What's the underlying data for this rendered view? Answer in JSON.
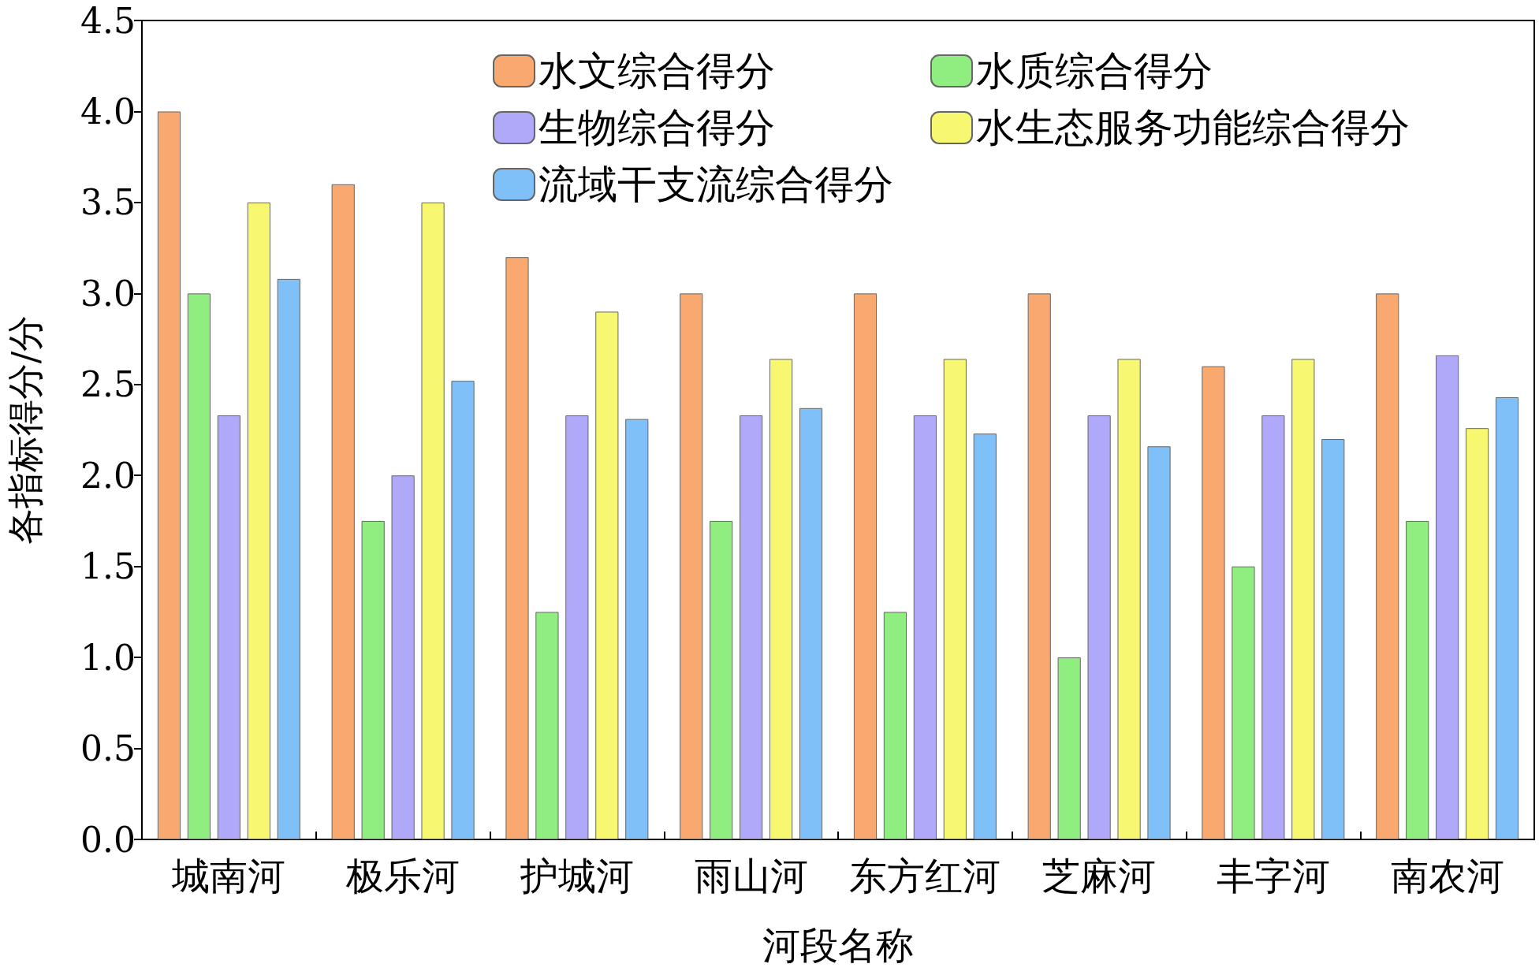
{
  "chart_data": {
    "type": "bar",
    "xlabel": "河段名称",
    "ylabel": "各指标得分/分",
    "categories": [
      "城南河",
      "极乐河",
      "护城河",
      "雨山河",
      "东方红河",
      "芝麻河",
      "丰字河",
      "南农河"
    ],
    "series": [
      {
        "name": "水文综合得分",
        "color": "#f9a870",
        "values": [
          4.0,
          3.6,
          3.2,
          3.0,
          3.0,
          3.0,
          2.6,
          3.0
        ]
      },
      {
        "name": "水质综合得分",
        "color": "#90ee80",
        "values": [
          3.0,
          1.75,
          1.25,
          1.75,
          1.25,
          1.0,
          1.5,
          1.75
        ]
      },
      {
        "name": "生物综合得分",
        "color": "#b0a8f8",
        "values": [
          2.33,
          2.0,
          2.33,
          2.33,
          2.33,
          2.33,
          2.33,
          2.66
        ]
      },
      {
        "name": "水生态服务功能综合得分",
        "color": "#f8f870",
        "values": [
          3.5,
          3.5,
          2.9,
          2.64,
          2.64,
          2.64,
          2.64,
          2.26
        ]
      },
      {
        "name": "流域干支流综合得分",
        "color": "#80c0f8",
        "values": [
          3.08,
          2.52,
          2.31,
          2.37,
          2.23,
          2.16,
          2.2,
          2.43
        ]
      }
    ],
    "ylim": [
      0,
      4.5
    ],
    "yticks": [
      {
        "value": 0,
        "label": "0.0"
      },
      {
        "value": 0.5,
        "label": "0.5"
      },
      {
        "value": 1,
        "label": "1.0"
      },
      {
        "value": 1.5,
        "label": "1.5"
      },
      {
        "value": 2,
        "label": "2.0"
      },
      {
        "value": 2.5,
        "label": "2.5"
      },
      {
        "value": 3,
        "label": "3.0"
      },
      {
        "value": 3.5,
        "label": "3.5"
      },
      {
        "value": 4,
        "label": "4.0"
      },
      {
        "value": 4.5,
        "label": "4.5"
      }
    ],
    "grid": false,
    "legend": "top right"
  }
}
